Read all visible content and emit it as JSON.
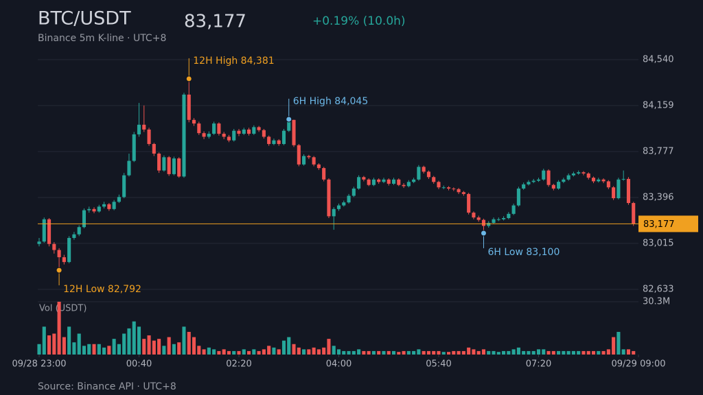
{
  "chart_data": {
    "type": "candlestick",
    "title": "BTC/USDT",
    "subtitle": "Binance 5m K-line · UTC+8",
    "change": "+0.19% (10.0h)",
    "volume_label": "Vol (USDT)",
    "source": "Source: Binance API · UTC+8",
    "last_price": {
      "value": 83177,
      "label": "83,177"
    },
    "up_color": "#26a69a",
    "down_color": "#ef5350",
    "price_line_color": "#f0a020",
    "grid": true,
    "x": [
      "23:00",
      "23:05",
      "23:10",
      "23:15",
      "23:20",
      "23:25",
      "23:30",
      "23:35",
      "23:40",
      "23:45",
      "23:50",
      "23:55",
      "00:00",
      "00:05",
      "00:10",
      "00:15",
      "00:20",
      "00:25",
      "00:30",
      "00:35",
      "00:40",
      "00:45",
      "00:50",
      "00:55",
      "01:00",
      "01:05",
      "01:10",
      "01:15",
      "01:20",
      "01:25",
      "01:30",
      "01:35",
      "01:40",
      "01:45",
      "01:50",
      "01:55",
      "02:00",
      "02:05",
      "02:10",
      "02:15",
      "02:20",
      "02:25",
      "02:30",
      "02:35",
      "02:40",
      "02:45",
      "02:50",
      "02:55",
      "03:00",
      "03:05",
      "03:10",
      "03:15",
      "03:20",
      "03:25",
      "03:30",
      "03:35",
      "03:40",
      "03:45",
      "03:50",
      "03:55",
      "04:00",
      "04:05",
      "04:10",
      "04:15",
      "04:20",
      "04:25",
      "04:30",
      "04:35",
      "04:40",
      "04:45",
      "04:50",
      "04:55",
      "05:00",
      "05:05",
      "05:10",
      "05:15",
      "05:20",
      "05:25",
      "05:30",
      "05:35",
      "05:40",
      "05:45",
      "05:50",
      "05:55",
      "06:00",
      "06:05",
      "06:10",
      "06:15",
      "06:20",
      "06:25",
      "06:30",
      "06:35",
      "06:40",
      "06:45",
      "06:50",
      "06:55",
      "07:00",
      "07:05",
      "07:10",
      "07:15",
      "07:20",
      "07:25",
      "07:30",
      "07:35",
      "07:40",
      "07:45",
      "07:50",
      "07:55",
      "08:00",
      "08:05",
      "08:10",
      "08:15",
      "08:20",
      "08:25",
      "08:30",
      "08:35",
      "08:40",
      "08:45",
      "08:50",
      "08:55"
    ],
    "open": [
      83010,
      83030,
      83215,
      83010,
      82960,
      82900,
      82860,
      83060,
      83090,
      83150,
      83290,
      83300,
      83280,
      83320,
      83340,
      83300,
      83360,
      83400,
      83580,
      83700,
      83920,
      84000,
      83960,
      83840,
      83760,
      83620,
      83730,
      83590,
      83720,
      83570,
      84250,
      84040,
      84010,
      83930,
      83900,
      83925,
      84010,
      83925,
      83900,
      83870,
      83950,
      83925,
      83960,
      83925,
      83980,
      83955,
      83900,
      83840,
      83870,
      83840,
      83950,
      84040,
      83830,
      83670,
      83740,
      83730,
      83670,
      83640,
      83545,
      83240,
      83300,
      83330,
      83355,
      83410,
      83470,
      83565,
      83545,
      83500,
      83545,
      83525,
      83545,
      83510,
      83545,
      83500,
      83490,
      83525,
      83545,
      83650,
      83610,
      83565,
      83525,
      83480,
      83480,
      83470,
      83465,
      83440,
      83425,
      83270,
      83230,
      83210,
      83160,
      83185,
      83215,
      83215,
      83225,
      83260,
      83330,
      83470,
      83505,
      83525,
      83535,
      83545,
      83620,
      83500,
      83470,
      83526,
      83545,
      83580,
      83595,
      83605,
      83595,
      83560,
      83530,
      83545,
      83530,
      83480,
      83390,
      83545,
      83550,
      83350
    ],
    "high": [
      83060,
      83230,
      83225,
      83025,
      82975,
      82920,
      83075,
      83110,
      83165,
      83305,
      83320,
      83315,
      83335,
      83360,
      83350,
      83375,
      83420,
      83600,
      83760,
      83940,
      84181,
      84160,
      83975,
      83850,
      83770,
      83745,
      83740,
      83735,
      83730,
      84265,
      84381,
      84055,
      84025,
      83945,
      83945,
      84025,
      84020,
      83940,
      83915,
      83965,
      83965,
      83975,
      83975,
      83995,
      83990,
      83965,
      83910,
      83885,
      83880,
      83965,
      84045,
      84042,
      83840,
      83755,
      83750,
      83740,
      83680,
      83650,
      83555,
      83315,
      83345,
      83370,
      83425,
      83485,
      83580,
      83575,
      83555,
      83560,
      83555,
      83560,
      83555,
      83560,
      83555,
      83515,
      83540,
      83560,
      83665,
      83660,
      83620,
      83575,
      83535,
      83495,
      83490,
      83480,
      83475,
      83450,
      83435,
      83280,
      83245,
      83220,
      83200,
      83230,
      83230,
      83240,
      83275,
      83345,
      83485,
      83520,
      83540,
      83550,
      83560,
      83635,
      83630,
      83510,
      83540,
      83560,
      83595,
      83610,
      83620,
      83615,
      83605,
      83570,
      83560,
      83555,
      83540,
      83490,
      83560,
      83620,
      83565,
      83360
    ],
    "low": [
      82990,
      83020,
      82990,
      82930,
      82792,
      82840,
      82850,
      83045,
      83075,
      83140,
      83270,
      83265,
      83270,
      83305,
      83285,
      83290,
      83350,
      83390,
      83570,
      83690,
      83900,
      83940,
      83825,
      83740,
      83600,
      83610,
      83575,
      83580,
      83560,
      83560,
      84020,
      83990,
      83915,
      83880,
      83885,
      83915,
      83910,
      83880,
      83855,
      83860,
      83905,
      83915,
      83910,
      83915,
      83940,
      83885,
      83825,
      83830,
      83825,
      83830,
      83940,
      83815,
      83655,
      83660,
      83715,
      83655,
      83625,
      83530,
      83225,
      83128,
      83285,
      83320,
      83345,
      83400,
      83460,
      83530,
      83490,
      83490,
      83510,
      83515,
      83495,
      83500,
      83490,
      83475,
      83480,
      83515,
      83535,
      83595,
      83550,
      83510,
      83465,
      83465,
      83455,
      83450,
      83425,
      83410,
      83255,
      83215,
      83195,
      83100,
      83145,
      83175,
      83200,
      83205,
      83215,
      83250,
      83320,
      83460,
      83495,
      83515,
      83525,
      83535,
      83485,
      83455,
      83460,
      83515,
      83535,
      83570,
      83585,
      83580,
      83545,
      83515,
      83520,
      83515,
      83465,
      83375,
      83380,
      83535,
      83335,
      83160
    ],
    "close": [
      83030,
      83215,
      83010,
      82960,
      82900,
      82860,
      83060,
      83090,
      83150,
      83290,
      83300,
      83280,
      83320,
      83340,
      83300,
      83360,
      83400,
      83580,
      83700,
      83920,
      84000,
      83960,
      83840,
      83760,
      83620,
      83730,
      83590,
      83720,
      83570,
      84250,
      84040,
      84010,
      83930,
      83900,
      83925,
      84010,
      83925,
      83900,
      83870,
      83950,
      83925,
      83960,
      83925,
      83980,
      83955,
      83900,
      83840,
      83870,
      83840,
      83950,
      84040,
      83830,
      83670,
      83740,
      83730,
      83670,
      83640,
      83545,
      83240,
      83300,
      83330,
      83355,
      83410,
      83470,
      83565,
      83545,
      83500,
      83545,
      83525,
      83545,
      83510,
      83545,
      83500,
      83490,
      83525,
      83545,
      83650,
      83610,
      83565,
      83525,
      83480,
      83480,
      83470,
      83465,
      83440,
      83425,
      83270,
      83230,
      83210,
      83160,
      83185,
      83215,
      83215,
      83225,
      83260,
      83330,
      83470,
      83505,
      83525,
      83535,
      83545,
      83620,
      83500,
      83470,
      83526,
      83545,
      83580,
      83595,
      83605,
      83595,
      83560,
      83530,
      83545,
      83530,
      83480,
      83390,
      83545,
      83550,
      83350,
      83177
    ],
    "volume": [
      6,
      16,
      11,
      12,
      30.3,
      10,
      16,
      7,
      12,
      5,
      6,
      6,
      6,
      4,
      5,
      9,
      6,
      12,
      15,
      19,
      16,
      9,
      11,
      8,
      9,
      5,
      10,
      6,
      7,
      16,
      13,
      10,
      5,
      3,
      4,
      3,
      2,
      3,
      2,
      2,
      2,
      3,
      2,
      3,
      2,
      3,
      5,
      4,
      3,
      8,
      10,
      6,
      4,
      3,
      3,
      4,
      3,
      4,
      9,
      5,
      3,
      2,
      2,
      2,
      3,
      2,
      2,
      2,
      2,
      2,
      2,
      2,
      1.5,
      2,
      2,
      2,
      3,
      2,
      2,
      2,
      2,
      1.5,
      1.5,
      2,
      2,
      2,
      4,
      3,
      2,
      3,
      2,
      2,
      1.5,
      2,
      2,
      3,
      4,
      2,
      2,
      2,
      3,
      3,
      2,
      2,
      2,
      2,
      2,
      2,
      2,
      2,
      2,
      2,
      2,
      2,
      3,
      10,
      13,
      3,
      3,
      2
    ],
    "ylim": [
      82633,
      84540
    ],
    "yticks": [
      {
        "value": 82633,
        "label": "82,633"
      },
      {
        "value": 83015,
        "label": "83,015"
      },
      {
        "value": 83396,
        "label": "83,396"
      },
      {
        "value": 83777,
        "label": "83,777"
      },
      {
        "value": 84159,
        "label": "84,159"
      },
      {
        "value": 84540,
        "label": "84,540"
      }
    ],
    "volume_lim": [
      0,
      30.3
    ],
    "volume_ticks": [
      {
        "value": 30.3,
        "label": "30.3M"
      }
    ],
    "xticks": [
      {
        "value": "23:00",
        "label": "09/28 23:00"
      },
      "00:40",
      "02:20",
      "04:00",
      "05:40",
      "07:20",
      {
        "value": "09:00",
        "label": "09/29 09:00"
      }
    ],
    "annotations": [
      {
        "text": "12H High 84,381",
        "value": 84381,
        "color": "#f0a020"
      },
      {
        "text": "12H Low 82,792",
        "value": 82792,
        "color": "#f0a020"
      },
      {
        "text": "6H High 84,045",
        "value": 84045,
        "color": "#6cb8e8"
      },
      {
        "text": "6H Low 83,100",
        "value": 83100,
        "color": "#6cb8e8"
      }
    ]
  }
}
